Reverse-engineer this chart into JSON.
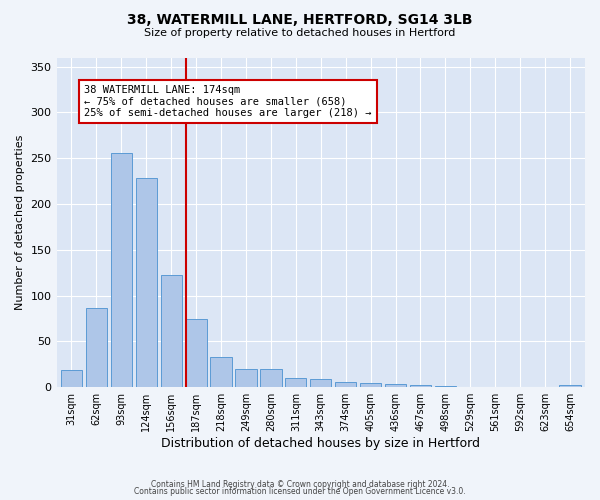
{
  "title": "38, WATERMILL LANE, HERTFORD, SG14 3LB",
  "subtitle": "Size of property relative to detached houses in Hertford",
  "xlabel": "Distribution of detached houses by size in Hertford",
  "ylabel": "Number of detached properties",
  "bar_labels": [
    "31sqm",
    "62sqm",
    "93sqm",
    "124sqm",
    "156sqm",
    "187sqm",
    "218sqm",
    "249sqm",
    "280sqm",
    "311sqm",
    "343sqm",
    "374sqm",
    "405sqm",
    "436sqm",
    "467sqm",
    "498sqm",
    "529sqm",
    "561sqm",
    "592sqm",
    "623sqm",
    "654sqm"
  ],
  "bar_values": [
    19,
    86,
    256,
    228,
    122,
    75,
    33,
    20,
    20,
    10,
    9,
    6,
    5,
    4,
    2,
    1,
    0,
    0,
    0,
    0,
    2
  ],
  "bar_color": "#aec6e8",
  "bar_edge_color": "#5b9bd5",
  "vline_x": 4.6,
  "vline_color": "#cc0000",
  "annotation_title": "38 WATERMILL LANE: 174sqm",
  "annotation_line1": "← 75% of detached houses are smaller (658)",
  "annotation_line2": "25% of semi-detached houses are larger (218) →",
  "annotation_box_color": "#ffffff",
  "annotation_box_edge_color": "#cc0000",
  "ylim": [
    0,
    360
  ],
  "yticks": [
    0,
    50,
    100,
    150,
    200,
    250,
    300,
    350
  ],
  "footer1": "Contains HM Land Registry data © Crown copyright and database right 2024.",
  "footer2": "Contains public sector information licensed under the Open Government Licence v3.0.",
  "bg_color": "#f0f4fa",
  "plot_bg_color": "#dce6f5"
}
